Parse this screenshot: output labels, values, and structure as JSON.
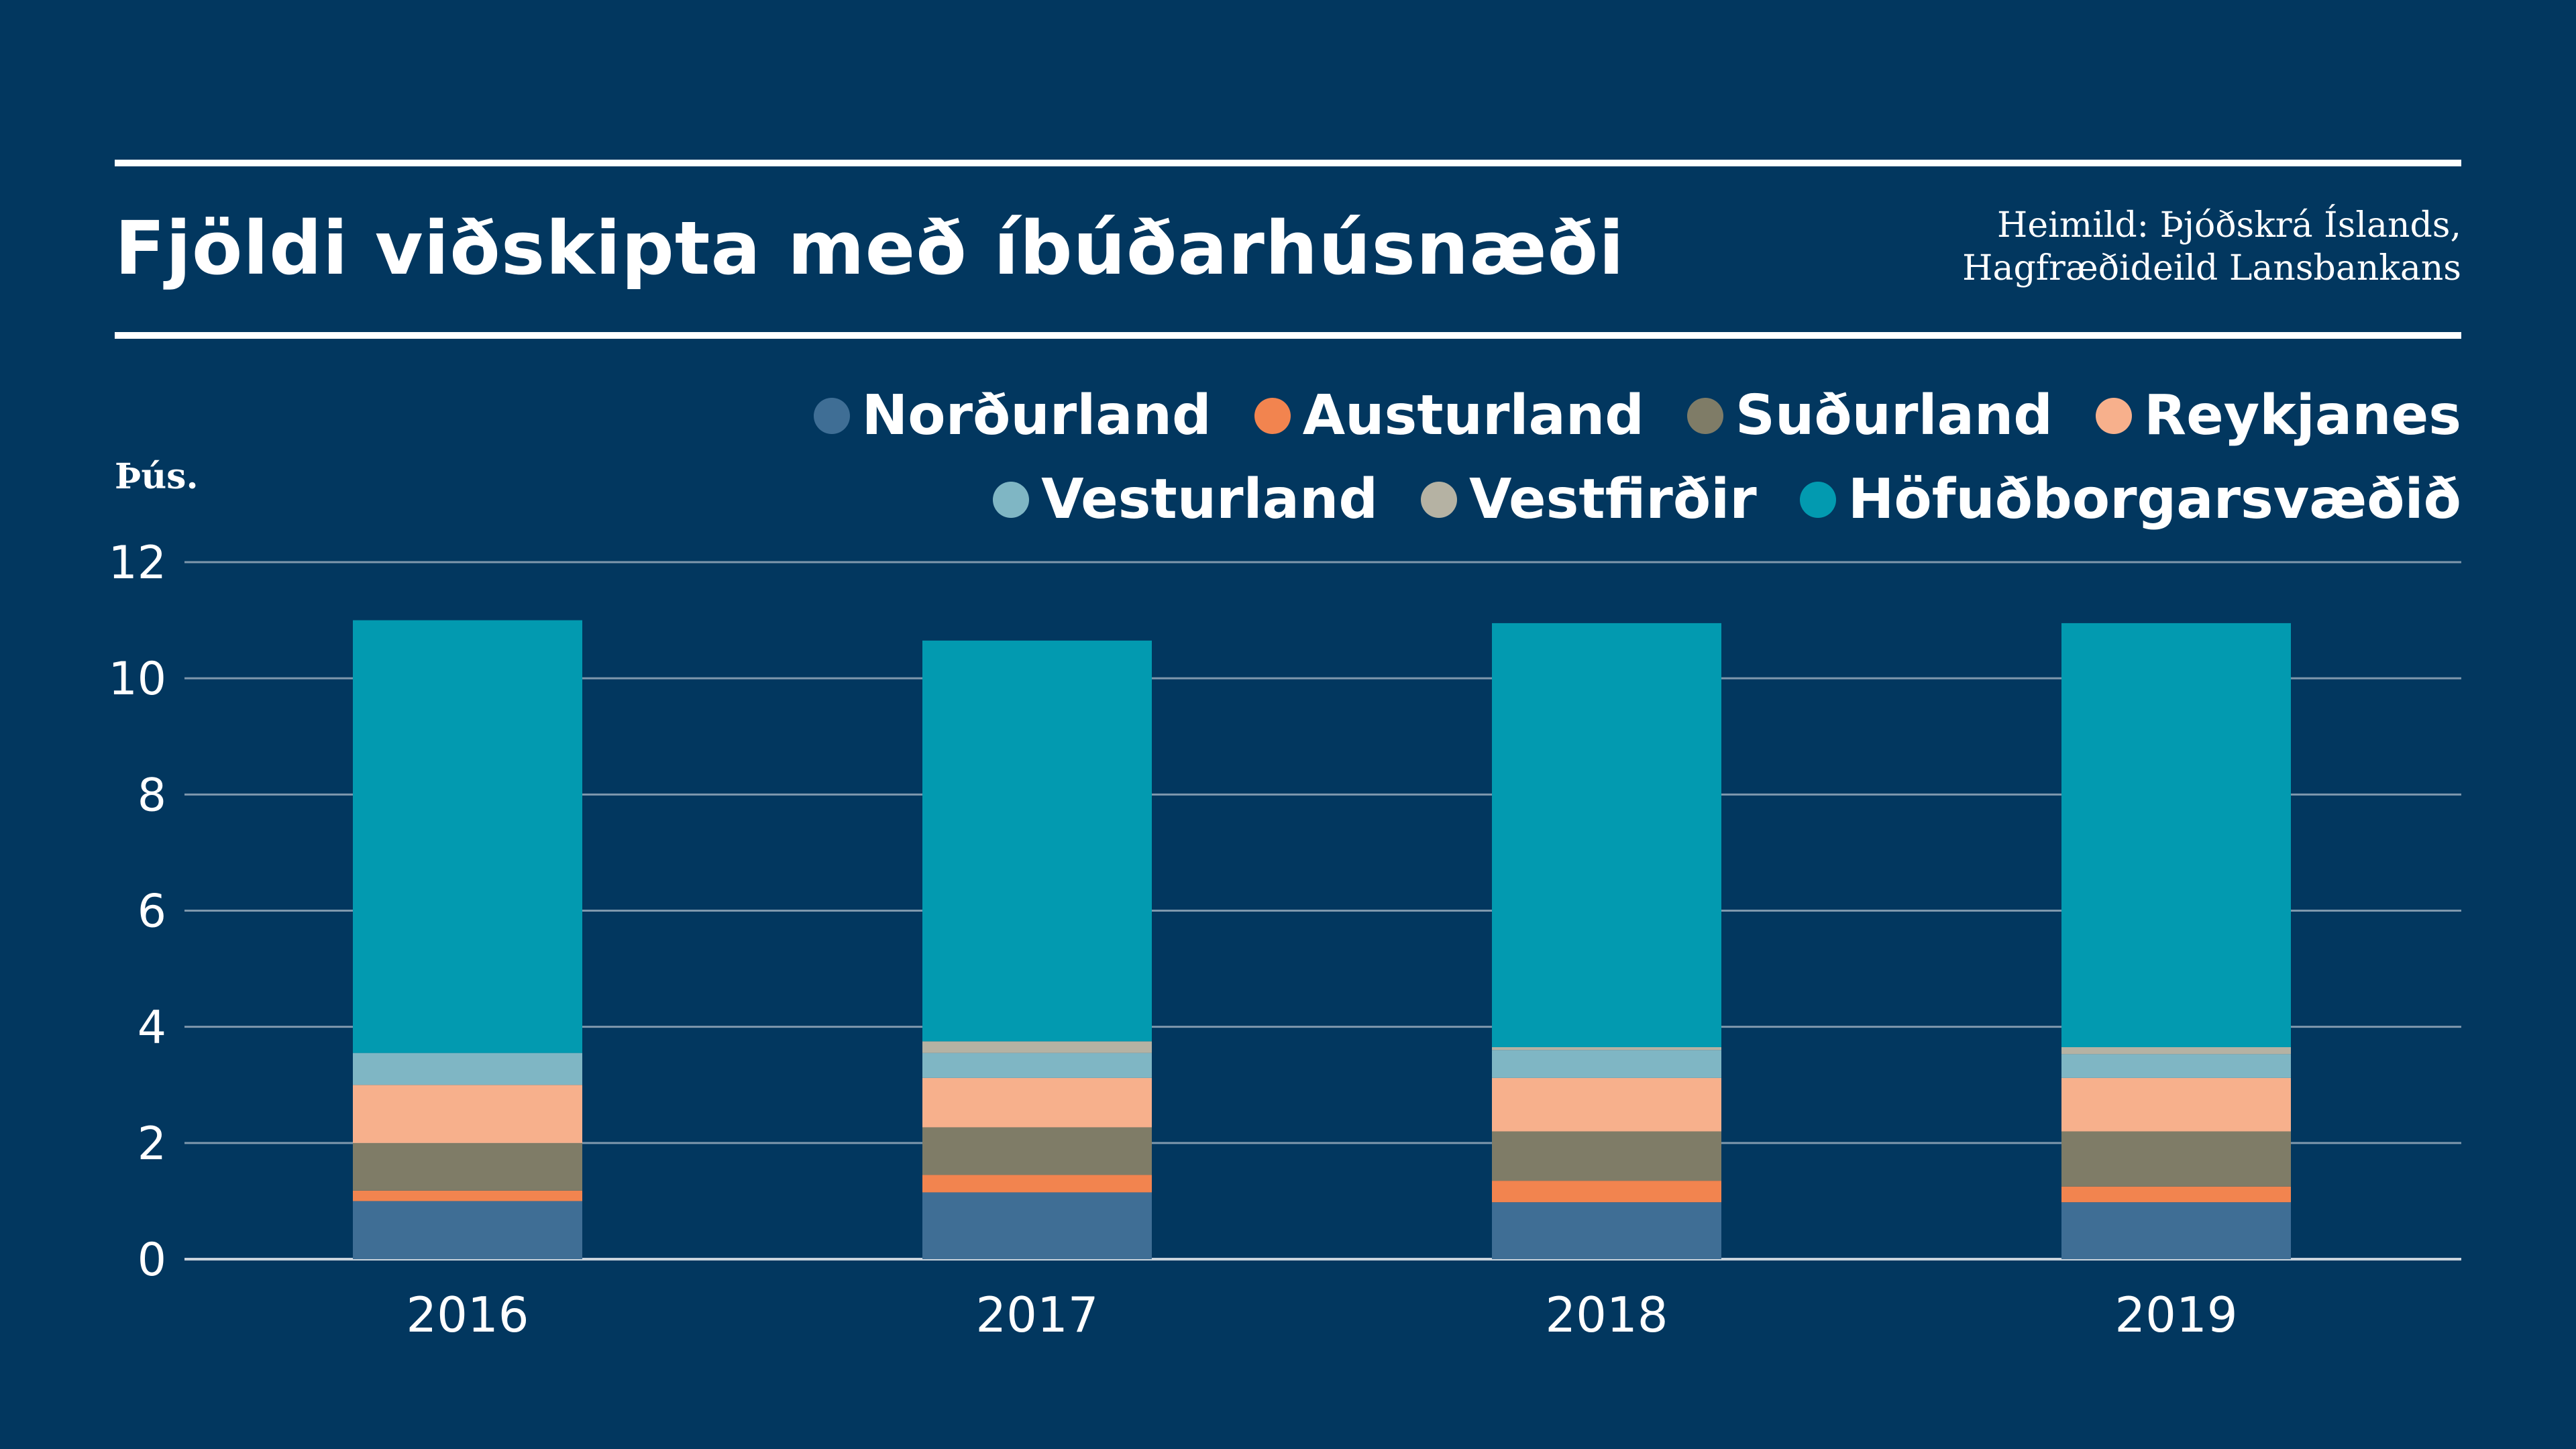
{
  "header": {
    "title": "Fjöldi viðskipta með íbúðarhúsnæði",
    "source_line1": "Heimild: Þjóðskrá Íslands,",
    "source_line2": "Hagfræðideild Lansbankans"
  },
  "legend": {
    "row1": [
      {
        "label": "Norðurland",
        "color": "#3f6e95"
      },
      {
        "label": "Austurland",
        "color": "#f2844f"
      },
      {
        "label": "Suðurland",
        "color": "#7f7c67"
      },
      {
        "label": "Reykjanes",
        "color": "#f7b08c"
      }
    ],
    "row2": [
      {
        "label": "Vesturland",
        "color": "#7fb6c4"
      },
      {
        "label": "Vestfirðir",
        "color": "#b5b2a3"
      },
      {
        "label": "Höfuðborgarsvæðið",
        "color": "#029ab0"
      }
    ]
  },
  "colors": {
    "background": "#02375f",
    "text": "#ffffff",
    "gridline": "#7f98ad"
  },
  "chart_data": {
    "type": "bar",
    "stacked": true,
    "unit_label": "Þús.",
    "ylim": [
      0,
      12
    ],
    "yticks": [
      0,
      2,
      4,
      6,
      8,
      10,
      12
    ],
    "grid": true,
    "legend_position": "top-right",
    "categories": [
      "2016",
      "2017",
      "2018",
      "2019"
    ],
    "series": [
      {
        "name": "Norðurland",
        "color": "#3f6e95",
        "values": [
          1.0,
          1.15,
          0.98,
          0.98
        ]
      },
      {
        "name": "Austurland",
        "color": "#f2844f",
        "values": [
          0.18,
          0.3,
          0.37,
          0.27
        ]
      },
      {
        "name": "Suðurland",
        "color": "#7f7c67",
        "values": [
          0.82,
          0.82,
          0.85,
          0.95
        ]
      },
      {
        "name": "Reykjanes",
        "color": "#f7b08c",
        "values": [
          1.0,
          0.85,
          0.92,
          0.92
        ]
      },
      {
        "name": "Vesturland",
        "color": "#7fb6c4",
        "values": [
          0.55,
          0.43,
          0.48,
          0.41
        ]
      },
      {
        "name": "Vestfirðir",
        "color": "#b5b2a3",
        "values": [
          0.0,
          0.2,
          0.05,
          0.12
        ]
      },
      {
        "name": "Höfuðborgarsvæðið",
        "color": "#029ab0",
        "values": [
          7.45,
          6.9,
          7.3,
          7.3
        ]
      }
    ]
  }
}
